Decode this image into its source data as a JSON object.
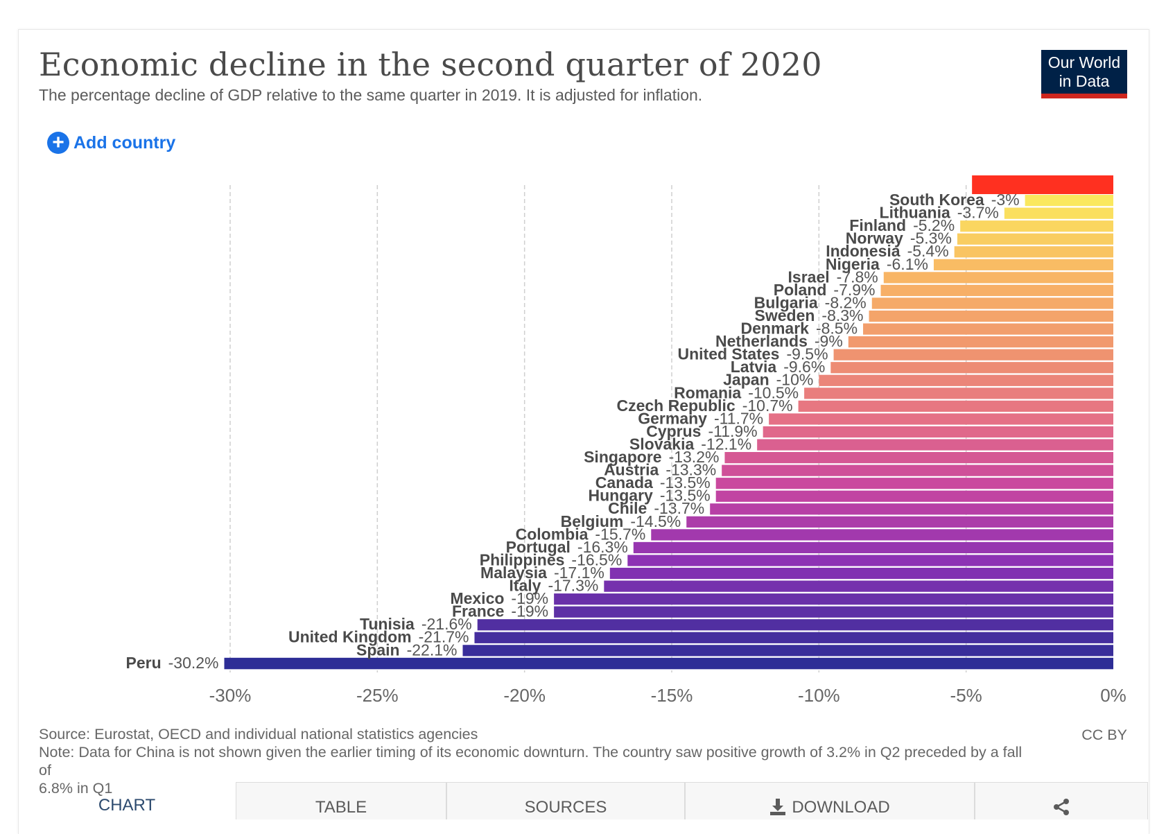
{
  "header": {
    "title": "Economic decline in the second quarter of 2020",
    "subtitle": "The percentage decline of GDP relative to the same quarter in 2019. It is adjusted for inflation.",
    "logo_line1": "Our World",
    "logo_line2": "in Data",
    "add_country_label": "Add country"
  },
  "colors": {
    "logo_bg": "#002147",
    "logo_stripe": "#ce261e",
    "accent": "#1a73e8",
    "hidden_bar": "#ff3020"
  },
  "chart_data": {
    "type": "bar",
    "orientation": "horizontal",
    "title": "Economic decline in the second quarter of 2020",
    "xlim": [
      -30,
      0
    ],
    "x_ticks": [
      -30,
      -25,
      -20,
      -15,
      -10,
      -5,
      0
    ],
    "x_tick_labels": [
      "-30%",
      "-25%",
      "-20%",
      "-15%",
      "-10%",
      "-5%",
      "0%"
    ],
    "grid": "vertical-dashed",
    "top_bar_value": -4.8,
    "series": [
      {
        "name": "South Korea",
        "value": -3,
        "label": "-3%"
      },
      {
        "name": "Lithuania",
        "value": -3.7,
        "label": "-3.7%"
      },
      {
        "name": "Finland",
        "value": -5.2,
        "label": "-5.2%"
      },
      {
        "name": "Norway",
        "value": -5.3,
        "label": "-5.3%"
      },
      {
        "name": "Indonesia",
        "value": -5.4,
        "label": "-5.4%"
      },
      {
        "name": "Nigeria",
        "value": -6.1,
        "label": "-6.1%"
      },
      {
        "name": "Israel",
        "value": -7.8,
        "label": "-7.8%"
      },
      {
        "name": "Poland",
        "value": -7.9,
        "label": "-7.9%"
      },
      {
        "name": "Bulgaria",
        "value": -8.2,
        "label": "-8.2%"
      },
      {
        "name": "Sweden",
        "value": -8.3,
        "label": "-8.3%"
      },
      {
        "name": "Denmark",
        "value": -8.5,
        "label": "-8.5%"
      },
      {
        "name": "Netherlands",
        "value": -9,
        "label": "-9%"
      },
      {
        "name": "United States",
        "value": -9.5,
        "label": "-9.5%"
      },
      {
        "name": "Latvia",
        "value": -9.6,
        "label": "-9.6%"
      },
      {
        "name": "Japan",
        "value": -10,
        "label": "-10%"
      },
      {
        "name": "Romania",
        "value": -10.5,
        "label": "-10.5%"
      },
      {
        "name": "Czech Republic",
        "value": -10.7,
        "label": "-10.7%"
      },
      {
        "name": "Germany",
        "value": -11.7,
        "label": "-11.7%"
      },
      {
        "name": "Cyprus",
        "value": -11.9,
        "label": "-11.9%"
      },
      {
        "name": "Slovakia",
        "value": -12.1,
        "label": "-12.1%"
      },
      {
        "name": "Singapore",
        "value": -13.2,
        "label": "-13.2%"
      },
      {
        "name": "Austria",
        "value": -13.3,
        "label": "-13.3%"
      },
      {
        "name": "Canada",
        "value": -13.5,
        "label": "-13.5%"
      },
      {
        "name": "Hungary",
        "value": -13.5,
        "label": "-13.5%"
      },
      {
        "name": "Chile",
        "value": -13.7,
        "label": "-13.7%"
      },
      {
        "name": "Belgium",
        "value": -14.5,
        "label": "-14.5%"
      },
      {
        "name": "Colombia",
        "value": -15.7,
        "label": "-15.7%"
      },
      {
        "name": "Portugal",
        "value": -16.3,
        "label": "-16.3%"
      },
      {
        "name": "Philippines",
        "value": -16.5,
        "label": "-16.5%"
      },
      {
        "name": "Malaysia",
        "value": -17.1,
        "label": "-17.1%"
      },
      {
        "name": "Italy",
        "value": -17.3,
        "label": "-17.3%"
      },
      {
        "name": "Mexico",
        "value": -19,
        "label": "-19%"
      },
      {
        "name": "France",
        "value": -19,
        "label": "-19%"
      },
      {
        "name": "Tunisia",
        "value": -21.6,
        "label": "-21.6%"
      },
      {
        "name": "United Kingdom",
        "value": -21.7,
        "label": "-21.7%"
      },
      {
        "name": "Spain",
        "value": -22.1,
        "label": "-22.1%"
      },
      {
        "name": "Peru",
        "value": -30.2,
        "label": "-30.2%"
      }
    ]
  },
  "footer": {
    "source": "Source: Eurostat, OECD and individual national statistics agencies",
    "license": "CC BY",
    "note_line1": "Note: Data for China is not shown given the earlier timing of its economic downturn. The country saw positive growth of 3.2% in Q2 preceded by a fall",
    "note_line2": "of",
    "note_line3": "6.8% in Q1"
  },
  "tabs": [
    {
      "label": "CHART"
    },
    {
      "label": "TABLE"
    },
    {
      "label": "SOURCES"
    },
    {
      "label": "DOWNLOAD",
      "icon": "download-icon"
    },
    {
      "label": "",
      "icon": "share-icon"
    }
  ]
}
